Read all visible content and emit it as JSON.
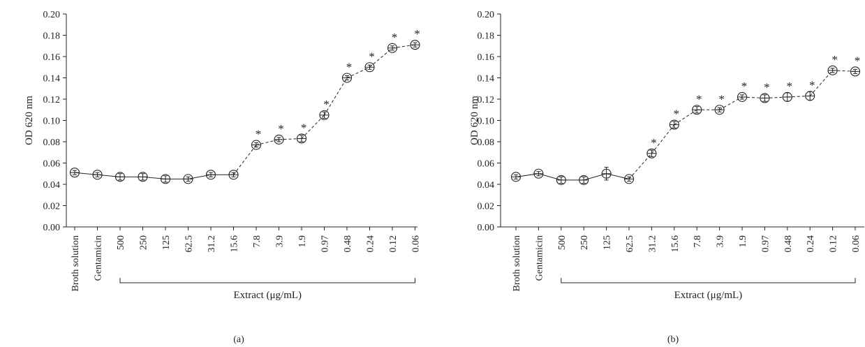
{
  "figure": {
    "panel_labels": [
      "(a)",
      "(b)"
    ]
  },
  "chart_data": [
    {
      "type": "line",
      "panel": "(a)",
      "ylabel": "OD 620 nm",
      "xlabel": "Extract (μg/mL)",
      "ylim": [
        0,
        0.2
      ],
      "yticks": [
        "0.00",
        "0.02",
        "0.04",
        "0.06",
        "0.08",
        "0.10",
        "0.12",
        "0.14",
        "0.16",
        "0.18",
        "0.20"
      ],
      "categories": [
        "Broth solution",
        "Gentamicin",
        "500",
        "250",
        "125",
        "62.5",
        "31.2",
        "15.6",
        "7.8",
        "3.9",
        "1.9",
        "0.97",
        "0.48",
        "0.24",
        "0.12",
        "0.06"
      ],
      "values": [
        0.051,
        0.049,
        0.047,
        0.047,
        0.045,
        0.045,
        0.049,
        0.049,
        0.077,
        0.082,
        0.083,
        0.105,
        0.14,
        0.15,
        0.168,
        0.171
      ],
      "errors": [
        0.002,
        0.002,
        0.003,
        0.003,
        0.003,
        0.002,
        0.002,
        0.002,
        0.002,
        0.002,
        0.003,
        0.003,
        0.002,
        0.002,
        0.002,
        0.002
      ],
      "significant": [
        false,
        false,
        false,
        false,
        false,
        false,
        false,
        false,
        true,
        true,
        true,
        true,
        true,
        true,
        true,
        true
      ],
      "marker": "*",
      "dashed_from_index": 7,
      "bracket_label": "Extract (μg/mL)",
      "bracket_range": [
        2,
        15
      ]
    },
    {
      "type": "line",
      "panel": "(b)",
      "ylabel": "OD 620 nm",
      "xlabel": "Extract (μg/mL)",
      "ylim": [
        0,
        0.2
      ],
      "yticks": [
        "0.00",
        "0.02",
        "0.04",
        "0.06",
        "0.08",
        "0.10",
        "0.12",
        "0.14",
        "0.16",
        "0.18",
        "0.20"
      ],
      "categories": [
        "Broth solution",
        "Gentamicin",
        "500",
        "250",
        "125",
        "62.5",
        "31.2",
        "15.6",
        "7.8",
        "3.9",
        "1.9",
        "0.97",
        "0.48",
        "0.24",
        "0.12",
        "0.06"
      ],
      "values": [
        0.047,
        0.05,
        0.044,
        0.044,
        0.05,
        0.045,
        0.069,
        0.096,
        0.11,
        0.11,
        0.122,
        0.121,
        0.122,
        0.123,
        0.147,
        0.146
      ],
      "errors": [
        0.002,
        0.002,
        0.003,
        0.003,
        0.006,
        0.002,
        0.003,
        0.003,
        0.003,
        0.002,
        0.002,
        0.003,
        0.004,
        0.004,
        0.002,
        0.002
      ],
      "significant": [
        false,
        false,
        false,
        false,
        false,
        false,
        true,
        true,
        true,
        true,
        true,
        true,
        true,
        true,
        true,
        true
      ],
      "marker": "*",
      "dashed_from_index": 5,
      "bracket_label": "Extract (μg/mL)",
      "bracket_range": [
        2,
        15
      ]
    }
  ]
}
